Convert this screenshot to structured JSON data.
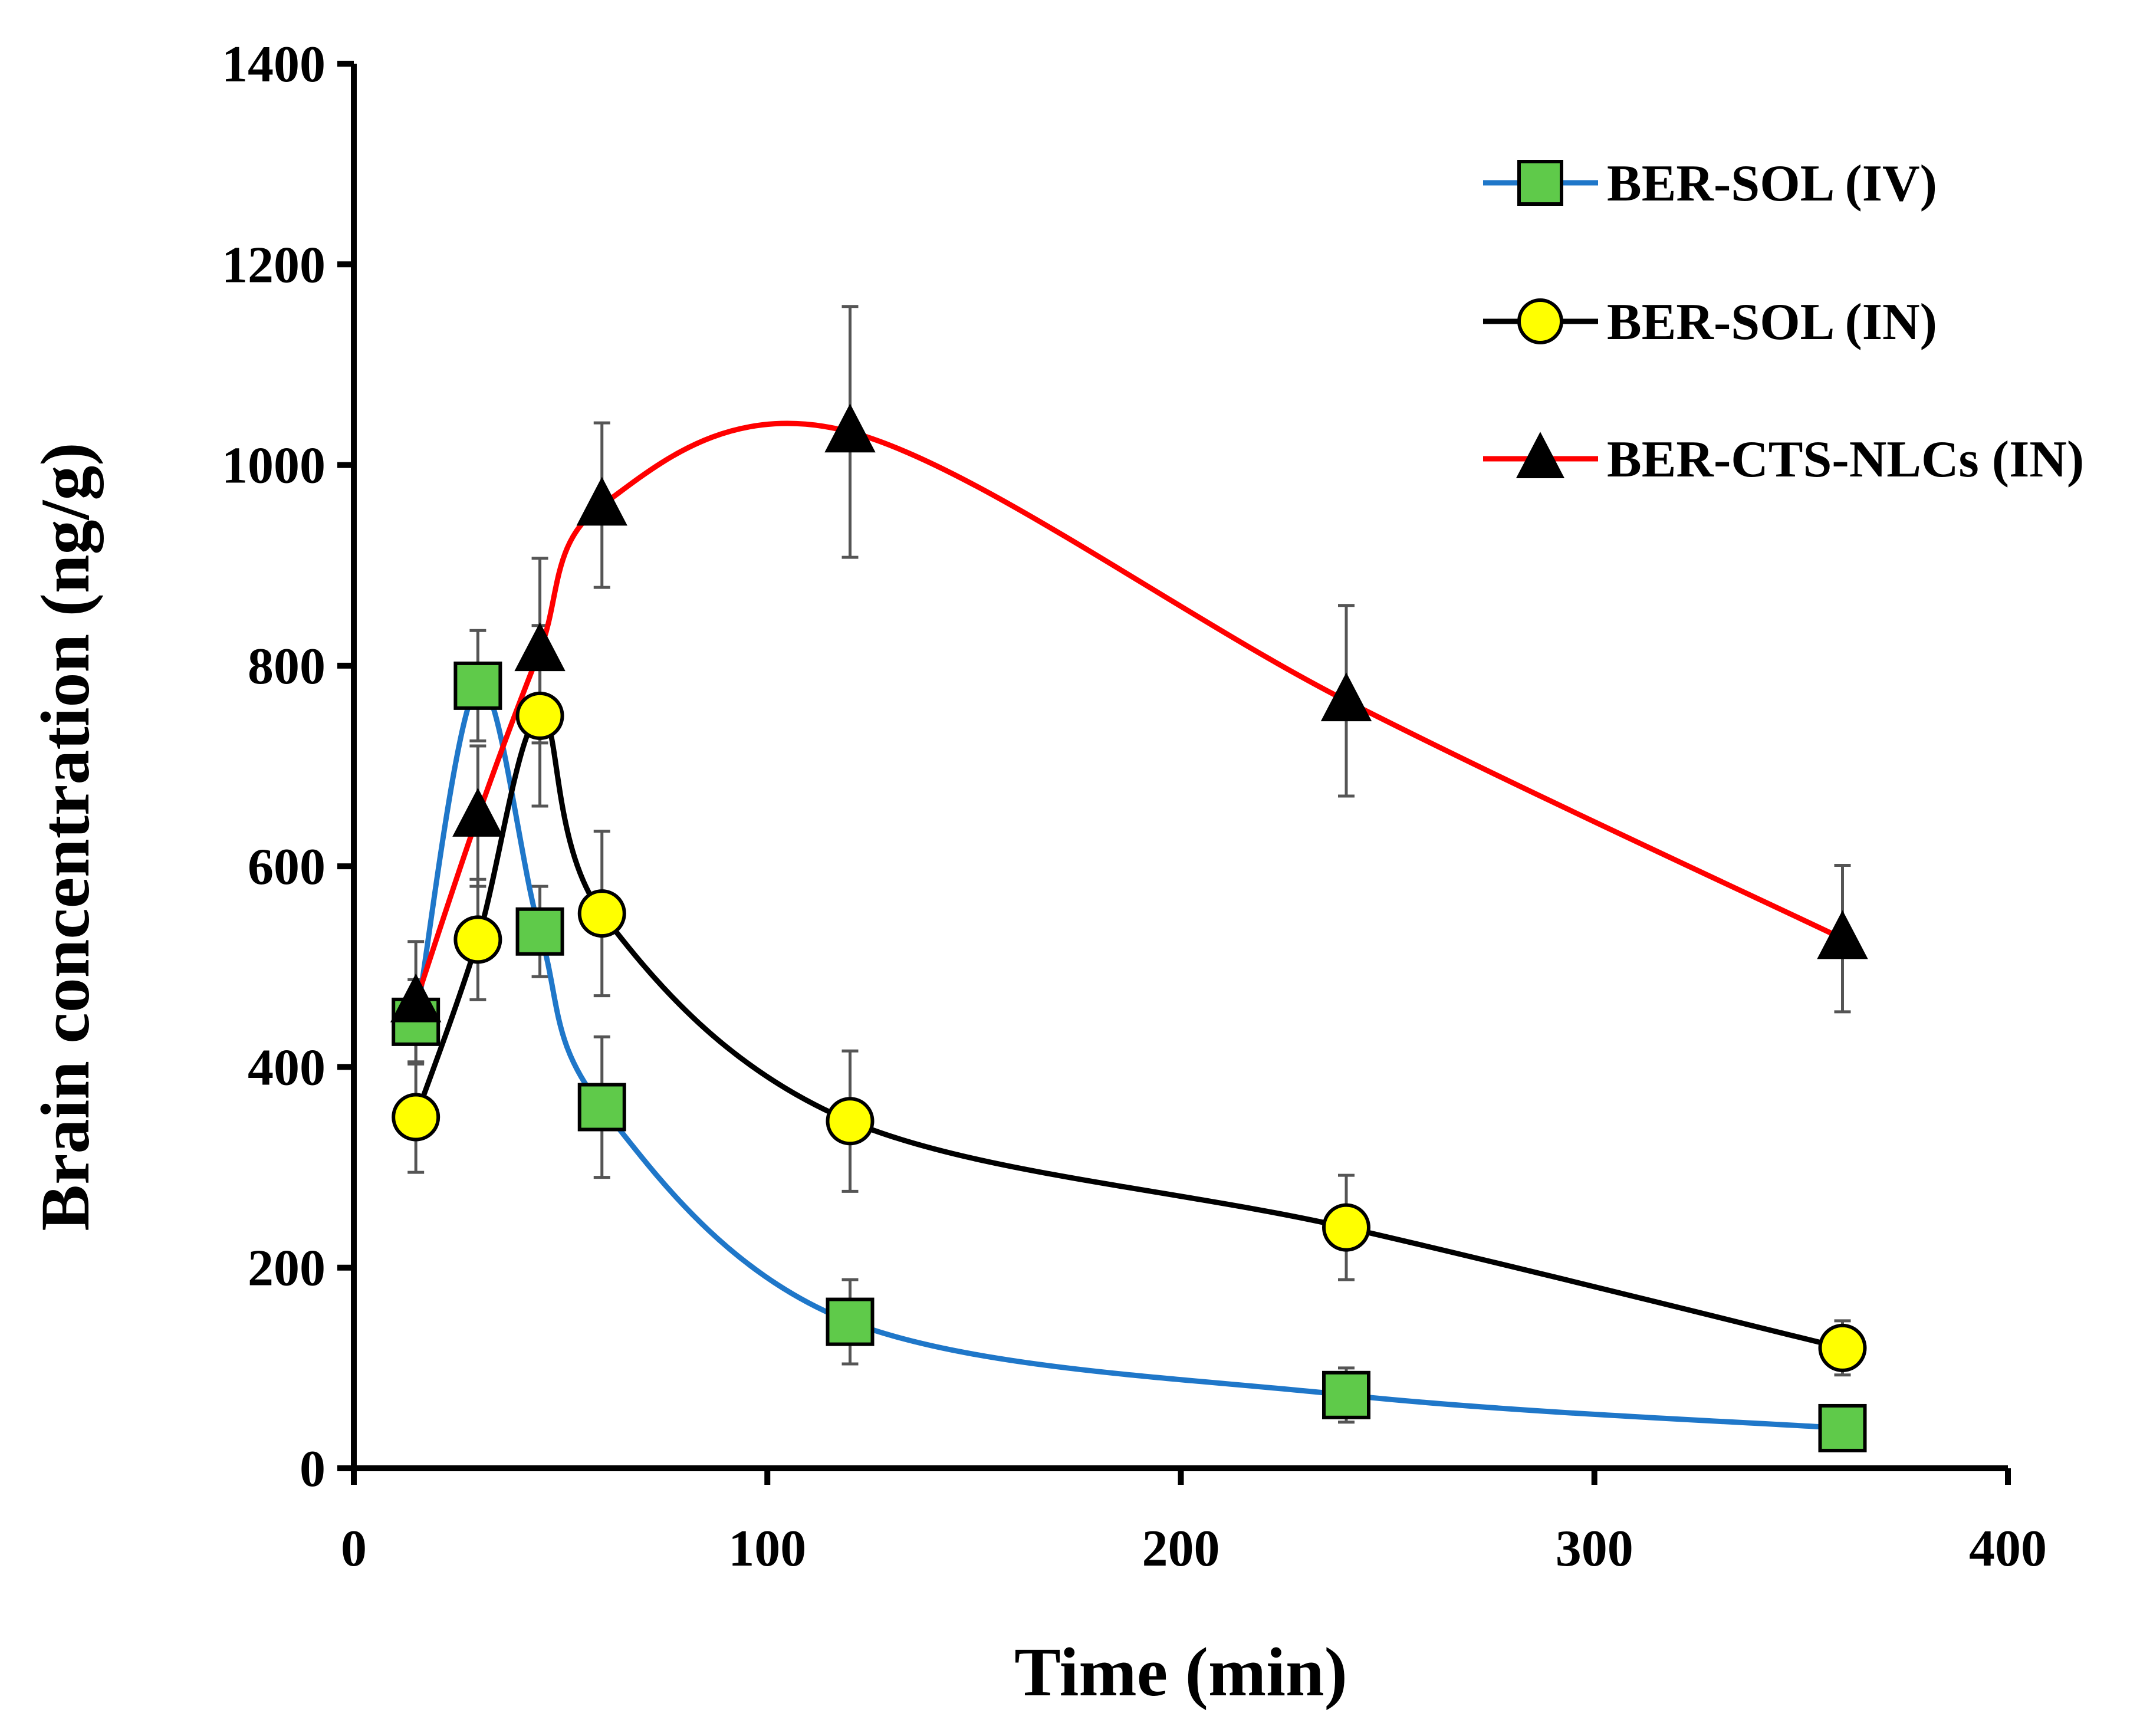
{
  "chart_data": {
    "type": "line",
    "title": "",
    "xlabel": "Time (min)",
    "ylabel": "Brain concentration (ng/g)",
    "xlim": [
      0,
      400
    ],
    "ylim": [
      0,
      1400
    ],
    "x_ticks": [
      "0",
      "100",
      "200",
      "300",
      "400"
    ],
    "y_ticks": [
      "0",
      "200",
      "400",
      "600",
      "800",
      "1000",
      "1200",
      "1400"
    ],
    "grid": false,
    "legend_position": "top-right",
    "series": [
      {
        "name": "BER-SOL (IV)",
        "color": "#1f77c9",
        "marker": "square",
        "marker_fill": "#5fca4a",
        "x": [
          15,
          30,
          45,
          60,
          120,
          240,
          360
        ],
        "y": [
          445,
          780,
          535,
          360,
          146,
          73,
          40
        ],
        "error": [
          42,
          55,
          45,
          70,
          42,
          27,
          10
        ]
      },
      {
        "name": "BER-SOL (IN)",
        "color": "#000000",
        "marker": "circle",
        "marker_fill": "#ffff00",
        "x": [
          15,
          30,
          45,
          60,
          120,
          240,
          360
        ],
        "y": [
          350,
          527,
          750,
          553,
          346,
          240,
          120
        ],
        "error": [
          55,
          60,
          90,
          82,
          70,
          52,
          27
        ]
      },
      {
        "name": "BER-CTS-NLCs (IN)",
        "color": "#ff0000",
        "marker": "triangle",
        "marker_fill": "#000000",
        "x": [
          15,
          30,
          45,
          60,
          120,
          240,
          360
        ],
        "y": [
          465,
          650,
          815,
          960,
          1033,
          765,
          528
        ],
        "error": [
          60,
          70,
          92,
          82,
          125,
          95,
          73
        ]
      }
    ]
  }
}
